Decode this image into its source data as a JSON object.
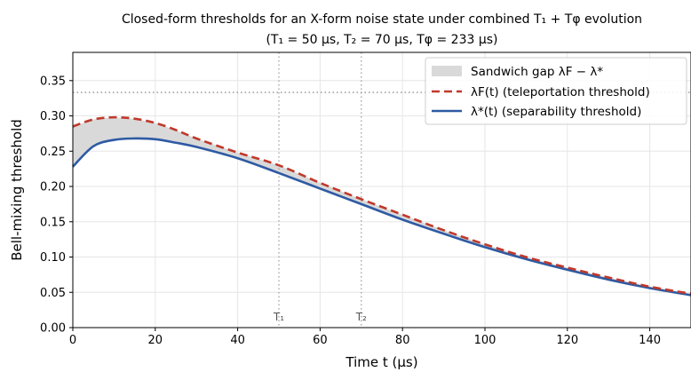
{
  "chart_data": {
    "type": "line",
    "title": "Closed-form thresholds for an X-form noise state under combined T₁ + Tφ evolution",
    "subtitle": "(T₁ = 50 μs, T₂ = 70 μs, Tφ = 233 μs)",
    "xlabel": "Time t (μs)",
    "ylabel": "Bell-mixing threshold",
    "xlim": [
      0,
      150
    ],
    "ylim": [
      0,
      0.39
    ],
    "x_ticks": [
      "0",
      "20",
      "40",
      "60",
      "80",
      "100",
      "120",
      "140"
    ],
    "y_ticks": [
      "0.00",
      "0.05",
      "0.10",
      "0.15",
      "0.20",
      "0.25",
      "0.30",
      "0.35"
    ],
    "grid": true,
    "legend_position": "top-right",
    "series": [
      {
        "name": "λF(t) (teleportation threshold)",
        "style": "dashed",
        "color": "#c0392b",
        "x": [
          0,
          5,
          10,
          15,
          20,
          25,
          30,
          40,
          50,
          60,
          70,
          80,
          90,
          100,
          110,
          120,
          130,
          140,
          150
        ],
        "y": [
          0.285,
          0.295,
          0.298,
          0.296,
          0.29,
          0.28,
          0.268,
          0.248,
          0.23,
          0.205,
          0.182,
          0.16,
          0.138,
          0.118,
          0.1,
          0.085,
          0.071,
          0.058,
          0.048
        ]
      },
      {
        "name": "λ*(t) (separability threshold)",
        "style": "solid",
        "color": "#2e5aa3",
        "x": [
          0,
          5,
          10,
          15,
          20,
          25,
          30,
          40,
          50,
          60,
          70,
          80,
          90,
          100,
          110,
          120,
          130,
          140,
          150
        ],
        "y": [
          0.228,
          0.257,
          0.266,
          0.268,
          0.267,
          0.262,
          0.256,
          0.24,
          0.219,
          0.197,
          0.175,
          0.153,
          0.133,
          0.114,
          0.097,
          0.082,
          0.068,
          0.056,
          0.046
        ]
      }
    ],
    "fill_between": {
      "name": "Sandwich gap λF − λ*",
      "color": "#d9d9d9"
    },
    "reference_lines": {
      "horizontal": {
        "y": 0.3333,
        "style": "dotted"
      },
      "vertical": [
        {
          "x": 50,
          "label": "T₁"
        },
        {
          "x": 70,
          "label": "T₂"
        }
      ]
    }
  }
}
